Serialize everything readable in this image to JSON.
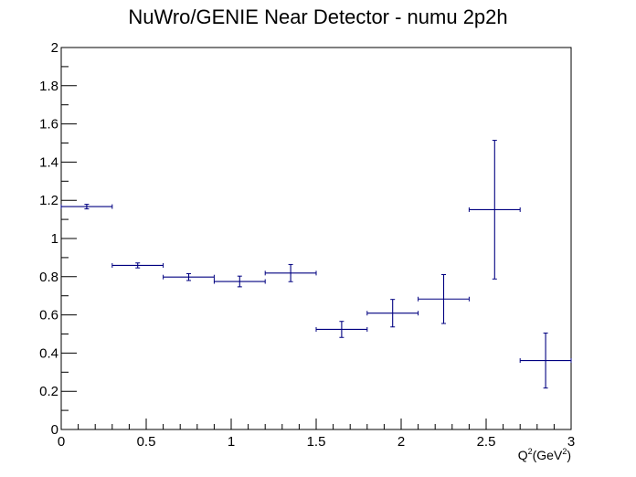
{
  "chart_data": {
    "type": "scatter",
    "title": "NuWro/GENIE Near Detector - numu 2p2h",
    "xlabel": "Q",
    "xlabel_sup": "2",
    "xlabel_unit": "(GeV",
    "xlabel_unit_sup": "2",
    "xlabel_close": ")",
    "ylabel": "",
    "xlim": [
      0,
      3
    ],
    "ylim": [
      0,
      2
    ],
    "x_ticks": [
      "0",
      "0.5",
      "1",
      "1.5",
      "2",
      "2.5",
      "3"
    ],
    "x_tick_values": [
      0,
      0.5,
      1,
      1.5,
      2,
      2.5,
      3
    ],
    "y_ticks": [
      "0",
      "0.2",
      "0.4",
      "0.6",
      "0.8",
      "1",
      "1.2",
      "1.4",
      "1.6",
      "1.8",
      "2"
    ],
    "y_tick_values": [
      0,
      0.2,
      0.4,
      0.6,
      0.8,
      1,
      1.2,
      1.4,
      1.6,
      1.8,
      2
    ],
    "grid": false,
    "series": [
      {
        "color": "#000080",
        "points": [
          {
            "x": 0.15,
            "xerr": 0.15,
            "y": 1.167,
            "yerr": 0.012
          },
          {
            "x": 0.45,
            "xerr": 0.15,
            "y": 0.859,
            "yerr": 0.013
          },
          {
            "x": 0.75,
            "xerr": 0.15,
            "y": 0.798,
            "yerr": 0.018
          },
          {
            "x": 1.05,
            "xerr": 0.15,
            "y": 0.775,
            "yerr": 0.028
          },
          {
            "x": 1.35,
            "xerr": 0.15,
            "y": 0.819,
            "yerr": 0.045
          },
          {
            "x": 1.65,
            "xerr": 0.15,
            "y": 0.524,
            "yerr": 0.042
          },
          {
            "x": 1.95,
            "xerr": 0.15,
            "y": 0.609,
            "yerr": 0.072
          },
          {
            "x": 2.25,
            "xerr": 0.15,
            "y": 0.683,
            "yerr": 0.128
          },
          {
            "x": 2.55,
            "xerr": 0.15,
            "y": 1.151,
            "yerr": 0.363
          },
          {
            "x": 2.85,
            "xerr": 0.15,
            "y": 0.361,
            "yerr": 0.144
          }
        ]
      }
    ]
  }
}
